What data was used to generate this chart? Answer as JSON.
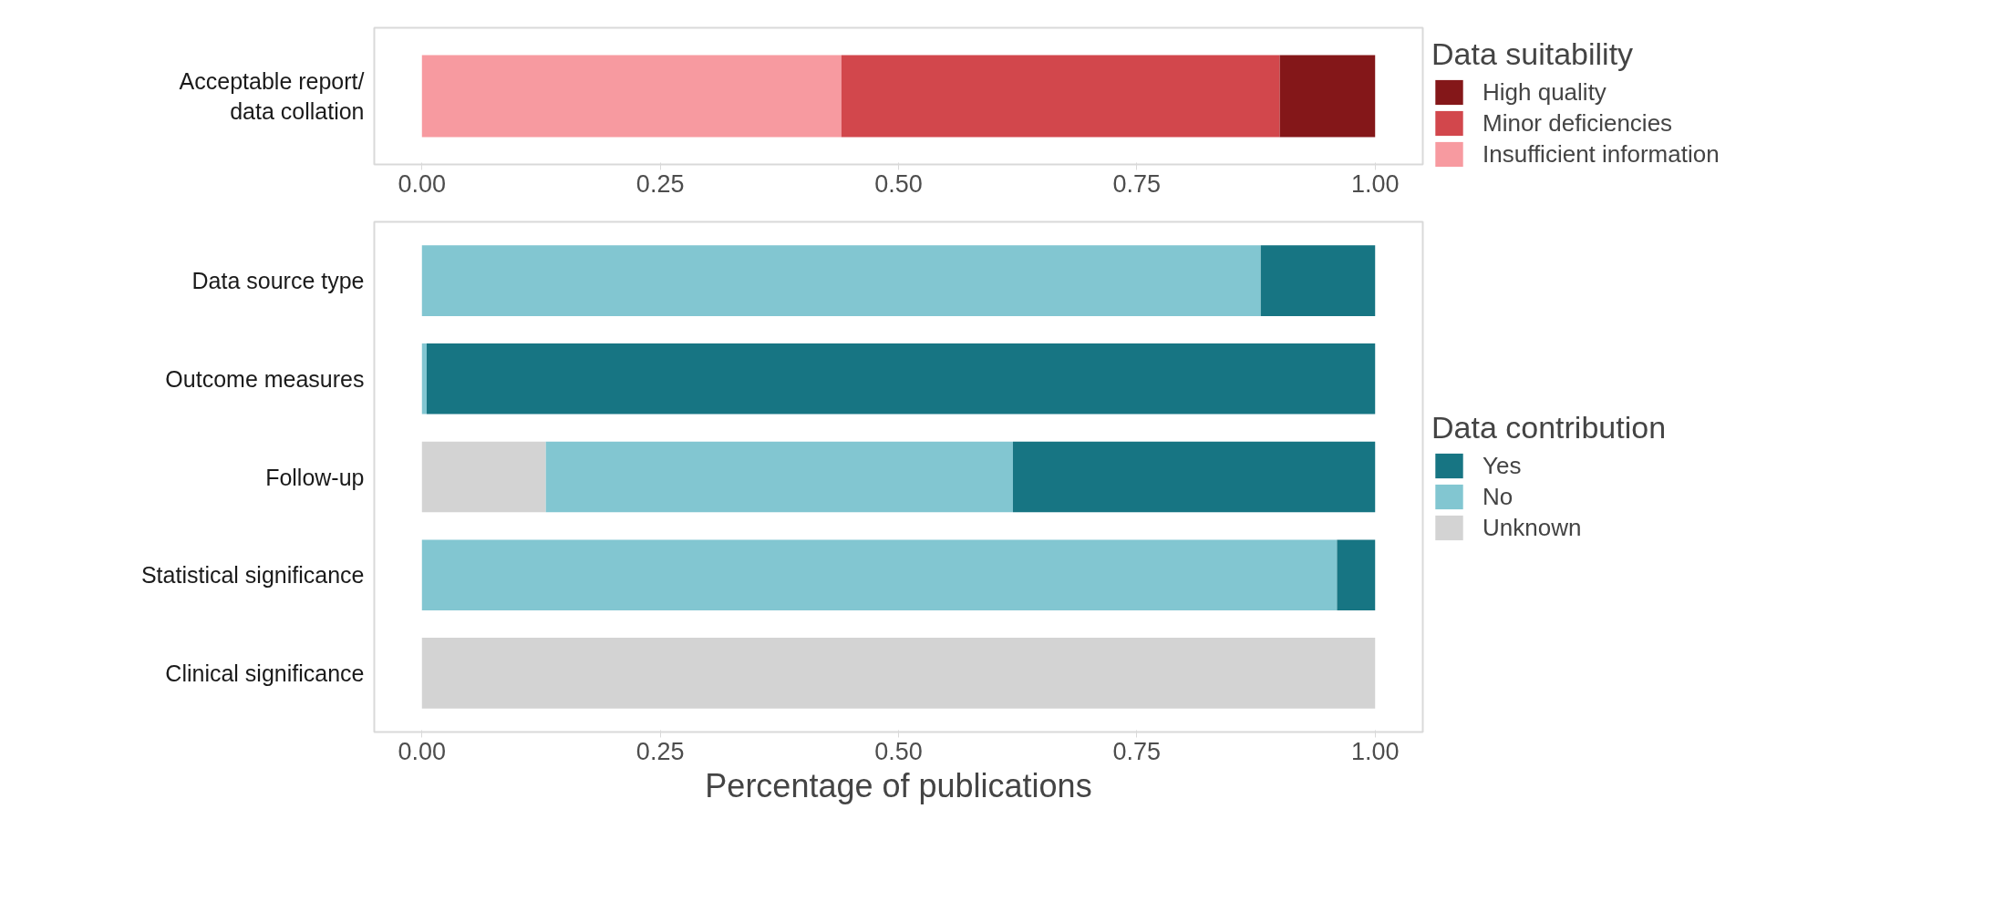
{
  "chart_data": [
    {
      "type": "bar",
      "orientation": "horizontal",
      "stacked": true,
      "legend_title": "Data suitability",
      "legend": "right",
      "categories": [
        "Acceptable report/\ndata collation"
      ],
      "series": [
        {
          "name": "Insufficient information",
          "color": "#f79aa0",
          "values": [
            0.44
          ]
        },
        {
          "name": "Minor deficiencies",
          "color": "#d2474c",
          "values": [
            0.46
          ]
        },
        {
          "name": "High quality",
          "color": "#841719",
          "values": [
            0.1
          ]
        }
      ],
      "xlim": [
        -0.05,
        1.05
      ],
      "xticks": [
        {
          "value": 0,
          "label": "0.00"
        },
        {
          "value": 0.25,
          "label": "0.25"
        },
        {
          "value": 0.5,
          "label": "0.50"
        },
        {
          "value": 0.75,
          "label": "0.75"
        },
        {
          "value": 1,
          "label": "1.00"
        }
      ],
      "grid": false
    },
    {
      "type": "bar",
      "orientation": "horizontal",
      "stacked": true,
      "legend_title": "Data contribution",
      "legend": "right",
      "xlabel": "Percentage of publications",
      "categories": [
        "Data source type",
        "Outcome measures",
        "Follow-up",
        "Statistical significance",
        "Clinical significance"
      ],
      "series": [
        {
          "name": "Unknown",
          "color": "#d3d3d3",
          "values": [
            0,
            0,
            0.13,
            0,
            1
          ]
        },
        {
          "name": "No",
          "color": "#82c6d1",
          "values": [
            0.88,
            0.005,
            0.49,
            0.96,
            0
          ]
        },
        {
          "name": "Yes",
          "color": "#177583",
          "values": [
            0.12,
            0.995,
            0.38,
            0.04,
            0
          ]
        }
      ],
      "xlim": [
        -0.05,
        1.05
      ],
      "xticks": [
        {
          "value": 0,
          "label": "0.00"
        },
        {
          "value": 0.25,
          "label": "0.25"
        },
        {
          "value": 0.5,
          "label": "0.50"
        },
        {
          "value": 0.75,
          "label": "0.75"
        },
        {
          "value": 1,
          "label": "1.00"
        }
      ],
      "grid": false
    }
  ]
}
